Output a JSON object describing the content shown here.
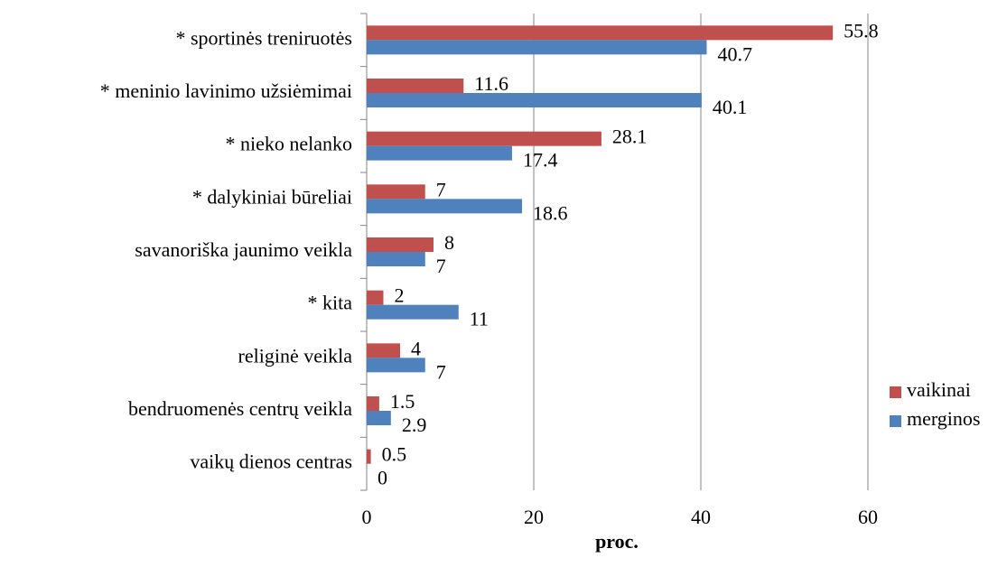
{
  "chart_data": {
    "type": "bar",
    "orientation": "horizontal",
    "categories": [
      "* sportinės treniruotės",
      "* meninio lavinimo užsiėmimai",
      "* nieko nelanko",
      "* dalykiniai būreliai",
      "savanoriška jaunimo veikla",
      "* kita",
      "religinė veikla",
      "bendruomenės centrų veikla",
      "vaikų dienos centras"
    ],
    "series": [
      {
        "name": "vaikinai",
        "color": "#c0504d",
        "values": [
          55.8,
          11.6,
          28.1,
          7,
          8,
          2,
          4,
          1.5,
          0.5
        ]
      },
      {
        "name": "merginos",
        "color": "#4f81bd",
        "values": [
          40.7,
          40.1,
          17.4,
          18.6,
          7,
          11,
          7,
          2.9,
          0
        ]
      }
    ],
    "xlabel": "proc.",
    "xlim": [
      0,
      60
    ],
    "xticks": [
      0,
      20,
      40,
      60
    ],
    "grid": true,
    "legend": "right"
  }
}
